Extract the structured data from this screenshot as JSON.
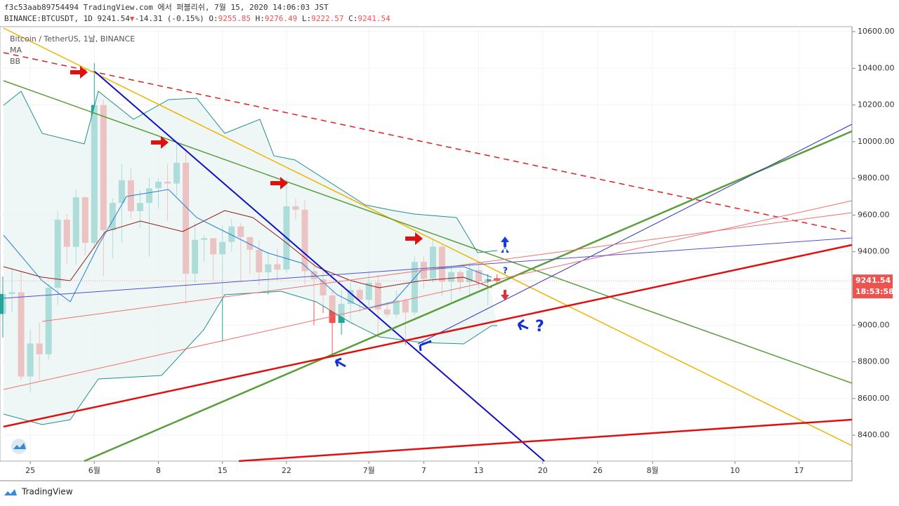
{
  "header": {
    "publish": "f3c53aab89754494 TradingView.com 에서 퍼블리쉬, 7월 15, 2020 14:06:03 JST",
    "symbol": "BINANCE:BTCUSDT, 1D",
    "last": 9241.54,
    "change_arrow": "▼",
    "change": "-14.31 (-0.15%)",
    "o_label": "O:",
    "o": 9255.85,
    "h_label": "H:",
    "h": 9276.49,
    "l_label": "L:",
    "l": 9222.57,
    "c_label": "C:",
    "c": 9241.54
  },
  "legend": {
    "title": "Bitcoin / TetherUS, 1날, BINANCE",
    "ma": "MA",
    "bb": "BB"
  },
  "chart_data": {
    "type": "candlestick",
    "categories": [
      null,
      null,
      null,
      "25",
      null,
      null,
      null,
      null,
      null,
      null,
      "6월",
      null,
      null,
      null,
      null,
      null,
      null,
      "8",
      null,
      null,
      null,
      null,
      null,
      null,
      "15",
      null,
      null,
      null,
      null,
      null,
      null,
      "22",
      null,
      null,
      null,
      null,
      null,
      null,
      null,
      null,
      "7월",
      null,
      null,
      null,
      null,
      null,
      "7",
      null,
      null,
      null,
      null,
      null,
      "13",
      null,
      null,
      null,
      null,
      null,
      null,
      "20",
      null,
      null,
      null,
      null,
      null,
      "26",
      null,
      null,
      null,
      null,
      null,
      "8월",
      null,
      null,
      null,
      null,
      null,
      null,
      null,
      null,
      "10",
      null,
      null,
      null,
      null,
      null,
      null,
      "17",
      null,
      null,
      null,
      null,
      null
    ],
    "open": [
      9061,
      9170,
      9179,
      8720,
      8900,
      8841,
      9204,
      9575,
      9427,
      9697,
      9448,
      10200,
      9518,
      9666,
      9789,
      9621,
      9666,
      9746,
      9782,
      9772,
      9885,
      9280,
      9465,
      9474,
      9386,
      9454,
      9538,
      9480,
      9411,
      9288,
      9332,
      9303,
      9648,
      9629,
      9294,
      9250,
      9162,
      9012,
      9116,
      9192,
      9138,
      9232,
      9086,
      9058,
      9135,
      9069,
      9345,
      9253,
      9428,
      9237,
      9289,
      9234,
      9300,
      9238,
      9255.85,
      null,
      null,
      null,
      null,
      null,
      null,
      null,
      null,
      null,
      null,
      null,
      null,
      null,
      null,
      null,
      null,
      null,
      null,
      null,
      null,
      null,
      null,
      null,
      null,
      null,
      null,
      null,
      null,
      null,
      null,
      null,
      null,
      null,
      null,
      null,
      null,
      null,
      null
    ],
    "high": [
      9265,
      9307,
      9298,
      8975,
      9017,
      9225,
      9625,
      9605,
      9740,
      9700,
      10428,
      10228,
      9690,
      9881,
      9854,
      9735,
      9802,
      9800,
      9877,
      9992,
      9964,
      9557,
      9489,
      9475,
      9544,
      9579,
      9557,
      9482,
      9460,
      9400,
      9417,
      9799,
      9690,
      9680,
      9340,
      9305,
      9196,
      9191,
      9235,
      9205,
      9292,
      9274,
      9126,
      9190,
      9145,
      9375,
      9375,
      9470,
      9437,
      9320,
      9300,
      9340,
      9345,
      9279,
      9276.49,
      null,
      null,
      null,
      null,
      null,
      null,
      null,
      null,
      null,
      null,
      null,
      null,
      null,
      null,
      null,
      null,
      null,
      null,
      null,
      null,
      null,
      null,
      null,
      null,
      null,
      null,
      null,
      null,
      null,
      null,
      null,
      null,
      null,
      null,
      null,
      null,
      null,
      null
    ],
    "low": [
      8933,
      9070,
      8700,
      8632,
      8700,
      8811,
      9110,
      9330,
      9331,
      9381,
      9417,
      9266,
      9365,
      9450,
      9581,
      9531,
      9372,
      9633,
      9570,
      9704,
      9113,
      9232,
      9344,
      9245,
      8910,
      9400,
      9237,
      9280,
      9216,
      9169,
      9246,
      9282,
      9572,
      9221,
      9000,
      9066,
      8833,
      8948,
      9024,
      9070,
      9100,
      8940,
      9043,
      9040,
      8893,
      9055,
      9200,
      9232,
      9160,
      9125,
      9185,
      9151,
      9200,
      9108,
      9222.57,
      null,
      null,
      null,
      null,
      null,
      null,
      null,
      null,
      null,
      null,
      null,
      null,
      null,
      null,
      null,
      null,
      null,
      null,
      null,
      null,
      null,
      null,
      null,
      null,
      null,
      null,
      null,
      null,
      null,
      null,
      null,
      null,
      null,
      null,
      null,
      null,
      null,
      null
    ],
    "close": [
      9170,
      9179,
      8720,
      8900,
      8841,
      9204,
      9575,
      9427,
      9697,
      9448,
      10200,
      9518,
      9666,
      9789,
      9621,
      9666,
      9746,
      9782,
      9772,
      9885,
      9280,
      9465,
      9474,
      9386,
      9454,
      9538,
      9480,
      9411,
      9288,
      9332,
      9303,
      9648,
      9629,
      9294,
      9250,
      9162,
      9012,
      9116,
      9192,
      9138,
      9232,
      9086,
      9058,
      9135,
      9069,
      9345,
      9253,
      9428,
      9237,
      9289,
      9234,
      9300,
      9238,
      9250,
      9241.54,
      null,
      null,
      null,
      null,
      null,
      null,
      null,
      null,
      null,
      null,
      null,
      null,
      null,
      null,
      null,
      null,
      null,
      null,
      null,
      null,
      null,
      null,
      null,
      null,
      null,
      null,
      null,
      null,
      null,
      null,
      null,
      null,
      null,
      null,
      null,
      null,
      null,
      null
    ],
    "up_color": "#26a69a",
    "down_color": "#ef5350",
    "ylim": [
      8259,
      10627
    ],
    "yticks": [
      {
        "value": 8400,
        "label": "8400.00"
      },
      {
        "value": 8600,
        "label": "8600.00"
      },
      {
        "value": 8800,
        "label": "8800.00"
      },
      {
        "value": 9000,
        "label": "9000.00"
      },
      {
        "value": 9200,
        "label": "9200.00"
      },
      {
        "value": 9400,
        "label": "9400.00"
      },
      {
        "value": 9600,
        "label": "9600.00"
      },
      {
        "value": 9800,
        "label": "9800.00"
      },
      {
        "value": 10000,
        "label": "10000.00"
      },
      {
        "value": 10200,
        "label": "10200.00"
      },
      {
        "value": 10400,
        "label": "10400.00"
      },
      {
        "value": 10600,
        "label": "10600.00"
      }
    ],
    "price_tag": 9241.54,
    "countdown": "18:53:58",
    "annotations": [
      "?",
      "?"
    ]
  },
  "footer": {
    "brand": "TradingView"
  }
}
